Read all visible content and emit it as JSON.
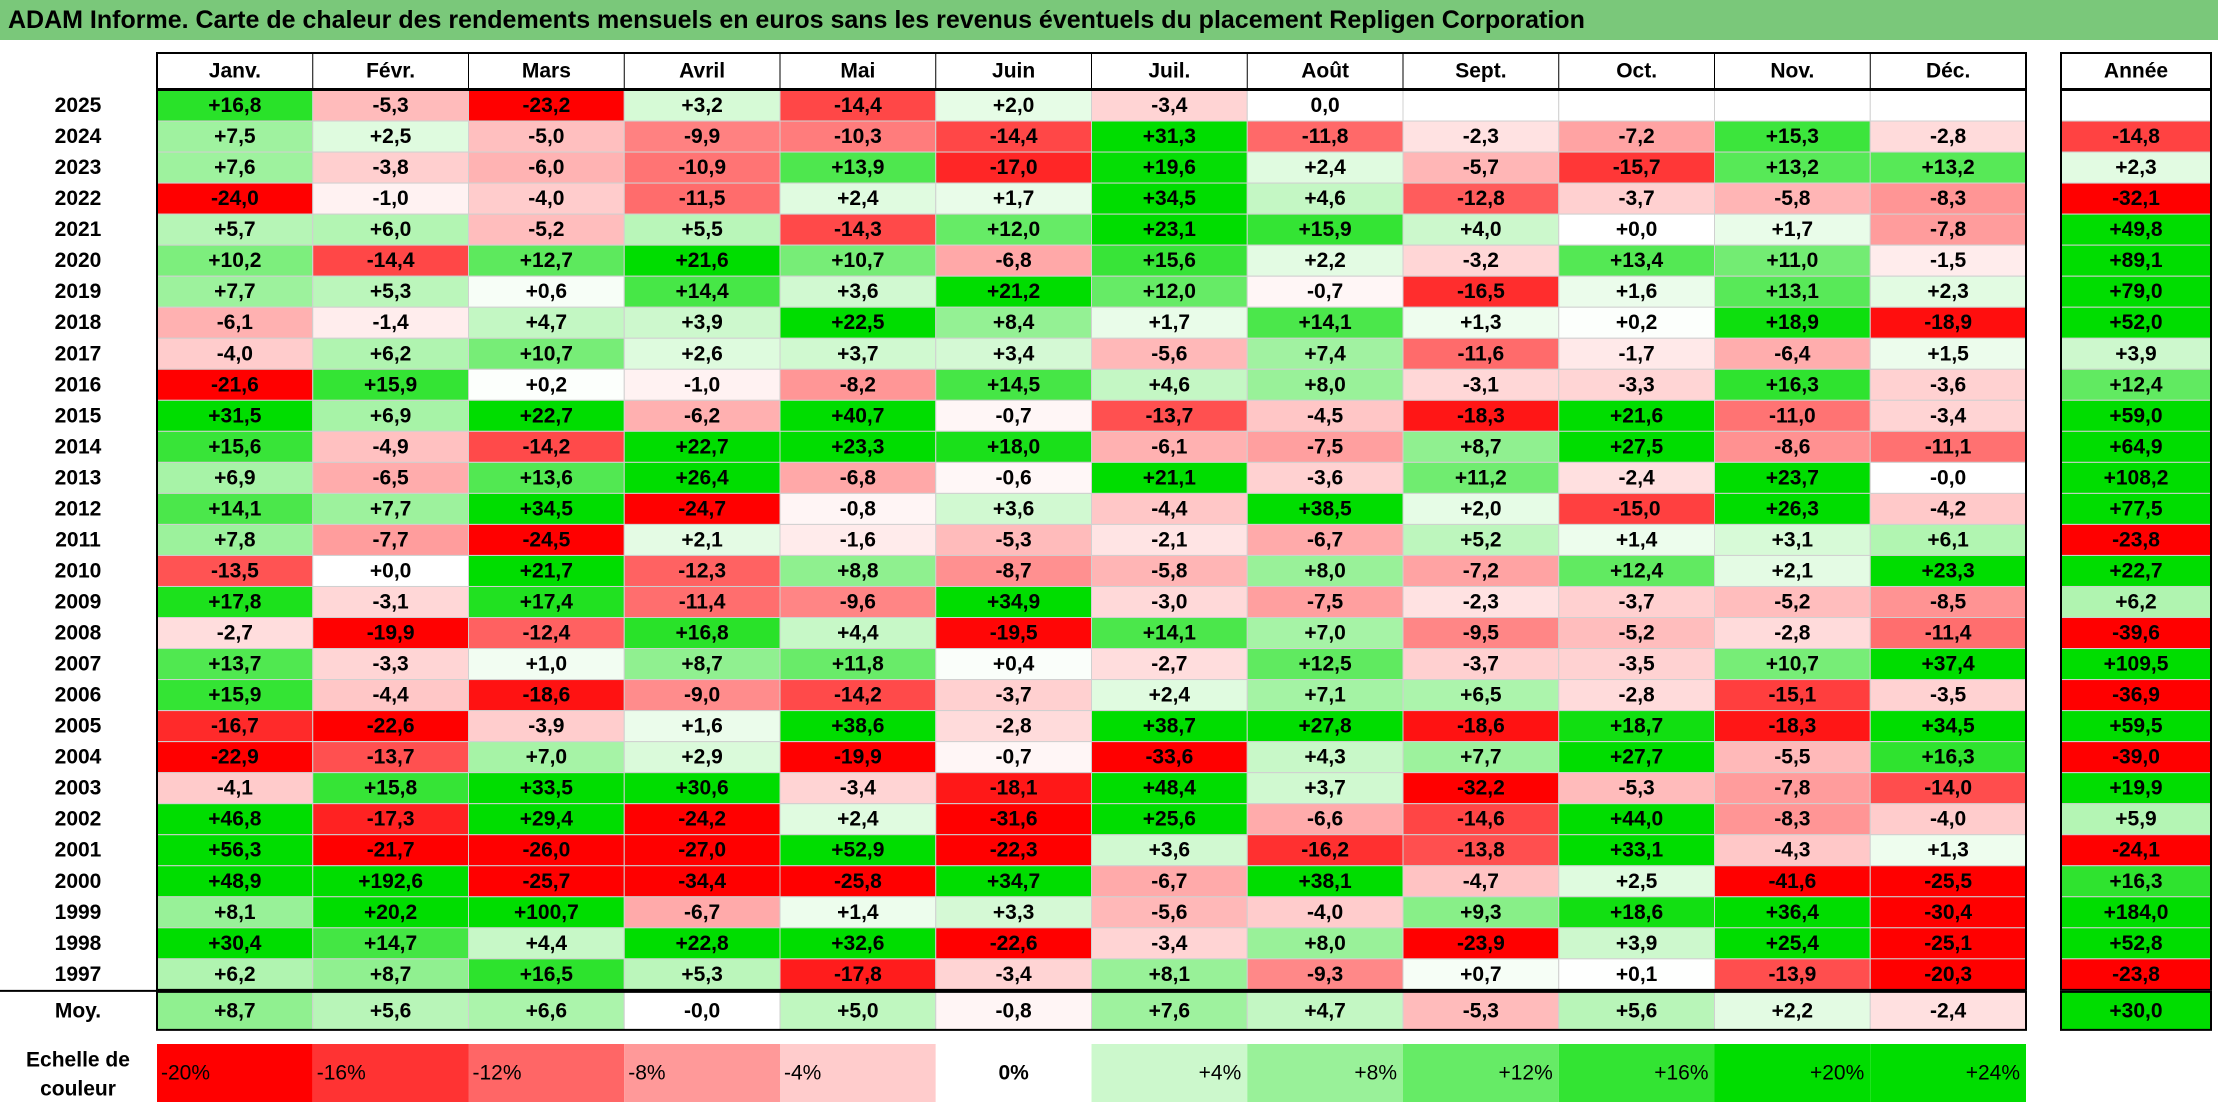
{
  "title": "ADAM Informe. Carte de chaleur des rendements mensuels en euros sans les revenus éventuels du placement Repligen Corporation",
  "chart_data": {
    "type": "heatmap",
    "title": "ADAM Informe. Carte de chaleur des rendements mensuels en euros sans les revenus éventuels du placement Repligen Corporation",
    "months": [
      "Janv.",
      "Févr.",
      "Mars",
      "Avril",
      "Mai",
      "Juin",
      "Juil.",
      "Août",
      "Sept.",
      "Oct.",
      "Nov.",
      "Déc."
    ],
    "year_header": "Année",
    "rows": [
      {
        "year": "2025",
        "values": [
          "+16,8",
          "-5,3",
          "-23,2",
          "+3,2",
          "-14,4",
          "+2,0",
          "-3,4",
          "0,0",
          "",
          "",
          "",
          ""
        ],
        "annual": ""
      },
      {
        "year": "2024",
        "values": [
          "+7,5",
          "+2,5",
          "-5,0",
          "-9,9",
          "-10,3",
          "-14,4",
          "+31,3",
          "-11,8",
          "-2,3",
          "-7,2",
          "+15,3",
          "-2,8"
        ],
        "annual": "-14,8"
      },
      {
        "year": "2023",
        "values": [
          "+7,6",
          "-3,8",
          "-6,0",
          "-10,9",
          "+13,9",
          "-17,0",
          "+19,6",
          "+2,4",
          "-5,7",
          "-15,7",
          "+13,2",
          "+13,2"
        ],
        "annual": "+2,3"
      },
      {
        "year": "2022",
        "values": [
          "-24,0",
          "-1,0",
          "-4,0",
          "-11,5",
          "+2,4",
          "+1,7",
          "+34,5",
          "+4,6",
          "-12,8",
          "-3,7",
          "-5,8",
          "-8,3"
        ],
        "annual": "-32,1"
      },
      {
        "year": "2021",
        "values": [
          "+5,7",
          "+6,0",
          "-5,2",
          "+5,5",
          "-14,3",
          "+12,0",
          "+23,1",
          "+15,9",
          "+4,0",
          "+0,0",
          "+1,7",
          "-7,8"
        ],
        "annual": "+49,8"
      },
      {
        "year": "2020",
        "values": [
          "+10,2",
          "-14,4",
          "+12,7",
          "+21,6",
          "+10,7",
          "-6,8",
          "+15,6",
          "+2,2",
          "-3,2",
          "+13,4",
          "+11,0",
          "-1,5"
        ],
        "annual": "+89,1"
      },
      {
        "year": "2019",
        "values": [
          "+7,7",
          "+5,3",
          "+0,6",
          "+14,4",
          "+3,6",
          "+21,2",
          "+12,0",
          "-0,7",
          "-16,5",
          "+1,6",
          "+13,1",
          "+2,3"
        ],
        "annual": "+79,0"
      },
      {
        "year": "2018",
        "values": [
          "-6,1",
          "-1,4",
          "+4,7",
          "+3,9",
          "+22,5",
          "+8,4",
          "+1,7",
          "+14,1",
          "+1,3",
          "+0,2",
          "+18,9",
          "-18,9"
        ],
        "annual": "+52,0"
      },
      {
        "year": "2017",
        "values": [
          "-4,0",
          "+6,2",
          "+10,7",
          "+2,6",
          "+3,7",
          "+3,4",
          "-5,6",
          "+7,4",
          "-11,6",
          "-1,7",
          "-6,4",
          "+1,5"
        ],
        "annual": "+3,9"
      },
      {
        "year": "2016",
        "values": [
          "-21,6",
          "+15,9",
          "+0,2",
          "-1,0",
          "-8,2",
          "+14,5",
          "+4,6",
          "+8,0",
          "-3,1",
          "-3,3",
          "+16,3",
          "-3,6"
        ],
        "annual": "+12,4"
      },
      {
        "year": "2015",
        "values": [
          "+31,5",
          "+6,9",
          "+22,7",
          "-6,2",
          "+40,7",
          "-0,7",
          "-13,7",
          "-4,5",
          "-18,3",
          "+21,6",
          "-11,0",
          "-3,4"
        ],
        "annual": "+59,0"
      },
      {
        "year": "2014",
        "values": [
          "+15,6",
          "-4,9",
          "-14,2",
          "+22,7",
          "+23,3",
          "+18,0",
          "-6,1",
          "-7,5",
          "+8,7",
          "+27,5",
          "-8,6",
          "-11,1"
        ],
        "annual": "+64,9"
      },
      {
        "year": "2013",
        "values": [
          "+6,9",
          "-6,5",
          "+13,6",
          "+26,4",
          "-6,8",
          "-0,6",
          "+21,1",
          "-3,6",
          "+11,2",
          "-2,4",
          "+23,7",
          "-0,0"
        ],
        "annual": "+108,2"
      },
      {
        "year": "2012",
        "values": [
          "+14,1",
          "+7,7",
          "+34,5",
          "-24,7",
          "-0,8",
          "+3,6",
          "-4,4",
          "+38,5",
          "+2,0",
          "-15,0",
          "+26,3",
          "-4,2"
        ],
        "annual": "+77,5"
      },
      {
        "year": "2011",
        "values": [
          "+7,8",
          "-7,7",
          "-24,5",
          "+2,1",
          "-1,6",
          "-5,3",
          "-2,1",
          "-6,7",
          "+5,2",
          "+1,4",
          "+3,1",
          "+6,1"
        ],
        "annual": "-23,8"
      },
      {
        "year": "2010",
        "values": [
          "-13,5",
          "+0,0",
          "+21,7",
          "-12,3",
          "+8,8",
          "-8,7",
          "-5,8",
          "+8,0",
          "-7,2",
          "+12,4",
          "+2,1",
          "+23,3"
        ],
        "annual": "+22,7"
      },
      {
        "year": "2009",
        "values": [
          "+17,8",
          "-3,1",
          "+17,4",
          "-11,4",
          "-9,6",
          "+34,9",
          "-3,0",
          "-7,5",
          "-2,3",
          "-3,7",
          "-5,2",
          "-8,5"
        ],
        "annual": "+6,2"
      },
      {
        "year": "2008",
        "values": [
          "-2,7",
          "-19,9",
          "-12,4",
          "+16,8",
          "+4,4",
          "-19,5",
          "+14,1",
          "+7,0",
          "-9,5",
          "-5,2",
          "-2,8",
          "-11,4"
        ],
        "annual": "-39,6"
      },
      {
        "year": "2007",
        "values": [
          "+13,7",
          "-3,3",
          "+1,0",
          "+8,7",
          "+11,8",
          "+0,4",
          "-2,7",
          "+12,5",
          "-3,7",
          "-3,5",
          "+10,7",
          "+37,4"
        ],
        "annual": "+109,5"
      },
      {
        "year": "2006",
        "values": [
          "+15,9",
          "-4,4",
          "-18,6",
          "-9,0",
          "-14,2",
          "-3,7",
          "+2,4",
          "+7,1",
          "+6,5",
          "-2,8",
          "-15,1",
          "-3,5"
        ],
        "annual": "-36,9"
      },
      {
        "year": "2005",
        "values": [
          "-16,7",
          "-22,6",
          "-3,9",
          "+1,6",
          "+38,6",
          "-2,8",
          "+38,7",
          "+27,8",
          "-18,6",
          "+18,7",
          "-18,3",
          "+34,5"
        ],
        "annual": "+59,5"
      },
      {
        "year": "2004",
        "values": [
          "-22,9",
          "-13,7",
          "+7,0",
          "+2,9",
          "-19,9",
          "-0,7",
          "-33,6",
          "+4,3",
          "+7,7",
          "+27,7",
          "-5,5",
          "+16,3"
        ],
        "annual": "-39,0"
      },
      {
        "year": "2003",
        "values": [
          "-4,1",
          "+15,8",
          "+33,5",
          "+30,6",
          "-3,4",
          "-18,1",
          "+48,4",
          "+3,7",
          "-32,2",
          "-5,3",
          "-7,8",
          "-14,0"
        ],
        "annual": "+19,9"
      },
      {
        "year": "2002",
        "values": [
          "+46,8",
          "-17,3",
          "+29,4",
          "-24,2",
          "+2,4",
          "-31,6",
          "+25,6",
          "-6,6",
          "-14,6",
          "+44,0",
          "-8,3",
          "-4,0"
        ],
        "annual": "+5,9"
      },
      {
        "year": "2001",
        "values": [
          "+56,3",
          "-21,7",
          "-26,0",
          "-27,0",
          "+52,9",
          "-22,3",
          "+3,6",
          "-16,2",
          "-13,8",
          "+33,1",
          "-4,3",
          "+1,3"
        ],
        "annual": "-24,1"
      },
      {
        "year": "2000",
        "values": [
          "+48,9",
          "+192,6",
          "-25,7",
          "-34,4",
          "-25,8",
          "+34,7",
          "-6,7",
          "+38,1",
          "-4,7",
          "+2,5",
          "-41,6",
          "-25,5"
        ],
        "annual": "+16,3"
      },
      {
        "year": "1999",
        "values": [
          "+8,1",
          "+20,2",
          "+100,7",
          "-6,7",
          "+1,4",
          "+3,3",
          "-5,6",
          "-4,0",
          "+9,3",
          "+18,6",
          "+36,4",
          "-30,4"
        ],
        "annual": "+184,0"
      },
      {
        "year": "1998",
        "values": [
          "+30,4",
          "+14,7",
          "+4,4",
          "+22,8",
          "+32,6",
          "-22,6",
          "-3,4",
          "+8,0",
          "-23,9",
          "+3,9",
          "+25,4",
          "-25,1"
        ],
        "annual": "+52,8"
      },
      {
        "year": "1997",
        "values": [
          "+6,2",
          "+8,7",
          "+16,5",
          "+5,3",
          "-17,8",
          "-3,4",
          "+8,1",
          "-9,3",
          "+0,7",
          "+0,1",
          "-13,9",
          "-20,3"
        ],
        "annual": "-23,8"
      }
    ],
    "average": {
      "label": "Moy.",
      "values": [
        "+8,7",
        "+5,6",
        "+6,6",
        "-0,0",
        "+5,0",
        "-0,8",
        "+7,6",
        "+4,7",
        "-5,3",
        "+5,6",
        "+2,2",
        "-2,4"
      ],
      "annual": "+30,0"
    },
    "scale": {
      "label": "Echelle de couleur",
      "steps": [
        "-20%",
        "-16%",
        "-12%",
        "-8%",
        "-4%",
        "0%",
        "+4%",
        "+8%",
        "+12%",
        "+16%",
        "+20%",
        "+24%"
      ],
      "step_values": [
        -20,
        -16,
        -12,
        -8,
        -4,
        0,
        4,
        8,
        12,
        16,
        20,
        24
      ]
    },
    "colors": {
      "negative": "#ff0000",
      "neutral": "#ffffff",
      "positive": "#00dd00",
      "title_bar": "#7ac87a"
    }
  }
}
